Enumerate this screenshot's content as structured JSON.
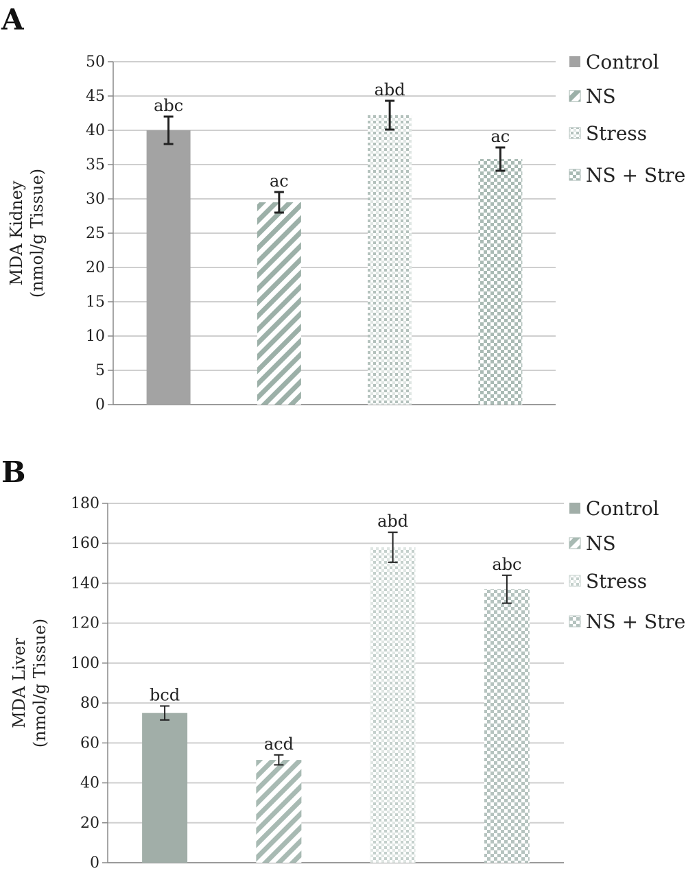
{
  "chart_data": [
    {
      "panel": "A",
      "type": "bar",
      "categories": [
        "Control",
        "NS",
        "Stress",
        "NS + Stress"
      ],
      "values": [
        40,
        29.5,
        42.2,
        35.8
      ],
      "errors": [
        2.0,
        1.5,
        2.1,
        1.7
      ],
      "bar_labels": [
        "abc",
        "ac",
        "abd",
        "ac"
      ],
      "ylabel": [
        "MDA Kidney",
        "(nmol/g Tissue)"
      ],
      "ylim": [
        0,
        50
      ],
      "yticks": [
        0,
        5,
        10,
        15,
        20,
        25,
        30,
        35,
        40,
        45,
        50
      ],
      "grid": true,
      "legend": "right",
      "legend_entries": [
        "Control",
        "NS",
        "Stress",
        "NS + Stress"
      ],
      "colors": [
        "#a3a3a3",
        "#9cb0a8",
        "#b3c1bc",
        "#a9bab4"
      ]
    },
    {
      "panel": "B",
      "type": "bar",
      "categories": [
        "Control",
        "NS",
        "Stress",
        "NS + Stress"
      ],
      "values": [
        75,
        51.5,
        158,
        137
      ],
      "errors": [
        3.5,
        2.5,
        7.5,
        7
      ],
      "bar_labels": [
        "bcd",
        "acd",
        "abd",
        "abc"
      ],
      "ylabel": [
        "MDA Liver",
        "(nmol/g Tissue)"
      ],
      "ylim": [
        0,
        180
      ],
      "yticks": [
        0,
        20,
        40,
        60,
        80,
        100,
        120,
        140,
        160,
        180
      ],
      "grid": true,
      "legend": "right",
      "legend_entries": [
        "Control",
        "NS",
        "Stress",
        "NS + Stress"
      ],
      "colors": [
        "#a1aea8",
        "#a8bab3",
        "#c4d0cc",
        "#b5c3bf"
      ]
    }
  ]
}
